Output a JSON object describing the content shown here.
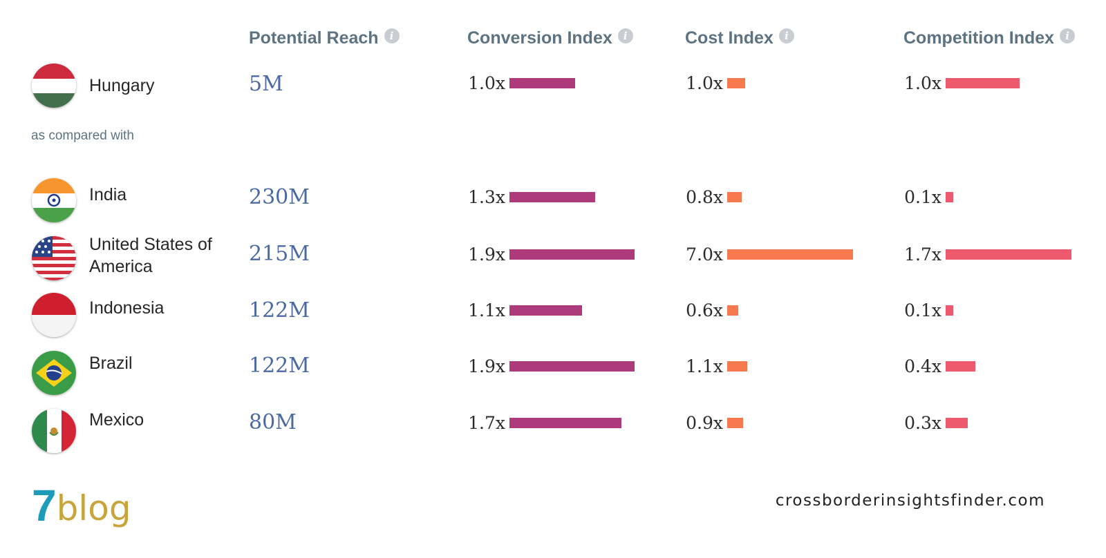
{
  "headers": {
    "reach": "Potential Reach",
    "conversion": "Conversion Index",
    "cost": "Cost Index",
    "competition": "Competition Index"
  },
  "compared_label": "as compared with",
  "countries": [
    {
      "name": "Hungary",
      "flag": "hungary-flag-icon",
      "reach": "5M",
      "conversion": {
        "label": "1.0x",
        "value": 1.0
      },
      "cost": {
        "label": "1.0x",
        "value": 1.0
      },
      "competition": {
        "label": "1.0x",
        "value": 1.0
      }
    },
    {
      "name": "India",
      "flag": "india-flag-icon",
      "reach": "230M",
      "conversion": {
        "label": "1.3x",
        "value": 1.3
      },
      "cost": {
        "label": "0.8x",
        "value": 0.8
      },
      "competition": {
        "label": "0.1x",
        "value": 0.1
      }
    },
    {
      "name": "United States of America",
      "flag": "usa-flag-icon",
      "reach": "215M",
      "conversion": {
        "label": "1.9x",
        "value": 1.9
      },
      "cost": {
        "label": "7.0x",
        "value": 7.0
      },
      "competition": {
        "label": "1.7x",
        "value": 1.7
      }
    },
    {
      "name": "Indonesia",
      "flag": "indonesia-flag-icon",
      "reach": "122M",
      "conversion": {
        "label": "1.1x",
        "value": 1.1
      },
      "cost": {
        "label": "0.6x",
        "value": 0.6
      },
      "competition": {
        "label": "0.1x",
        "value": 0.1
      }
    },
    {
      "name": "Brazil",
      "flag": "brazil-flag-icon",
      "reach": "122M",
      "conversion": {
        "label": "1.9x",
        "value": 1.9
      },
      "cost": {
        "label": "1.1x",
        "value": 1.1
      },
      "competition": {
        "label": "0.4x",
        "value": 0.4
      }
    },
    {
      "name": "Mexico",
      "flag": "mexico-flag-icon",
      "reach": "80M",
      "conversion": {
        "label": "1.7x",
        "value": 1.7
      },
      "cost": {
        "label": "0.9x",
        "value": 0.9
      },
      "competition": {
        "label": "0.3x",
        "value": 0.3
      }
    }
  ],
  "colors": {
    "conversion": "#ad3a7a",
    "cost": "#f77a4e",
    "competition": "#ee5a6d",
    "header": "#5e7382",
    "reach": "#4b6aa4"
  },
  "logo": {
    "number": "7",
    "text": "blog"
  },
  "site": "crossborderinsightsfinder.com"
}
